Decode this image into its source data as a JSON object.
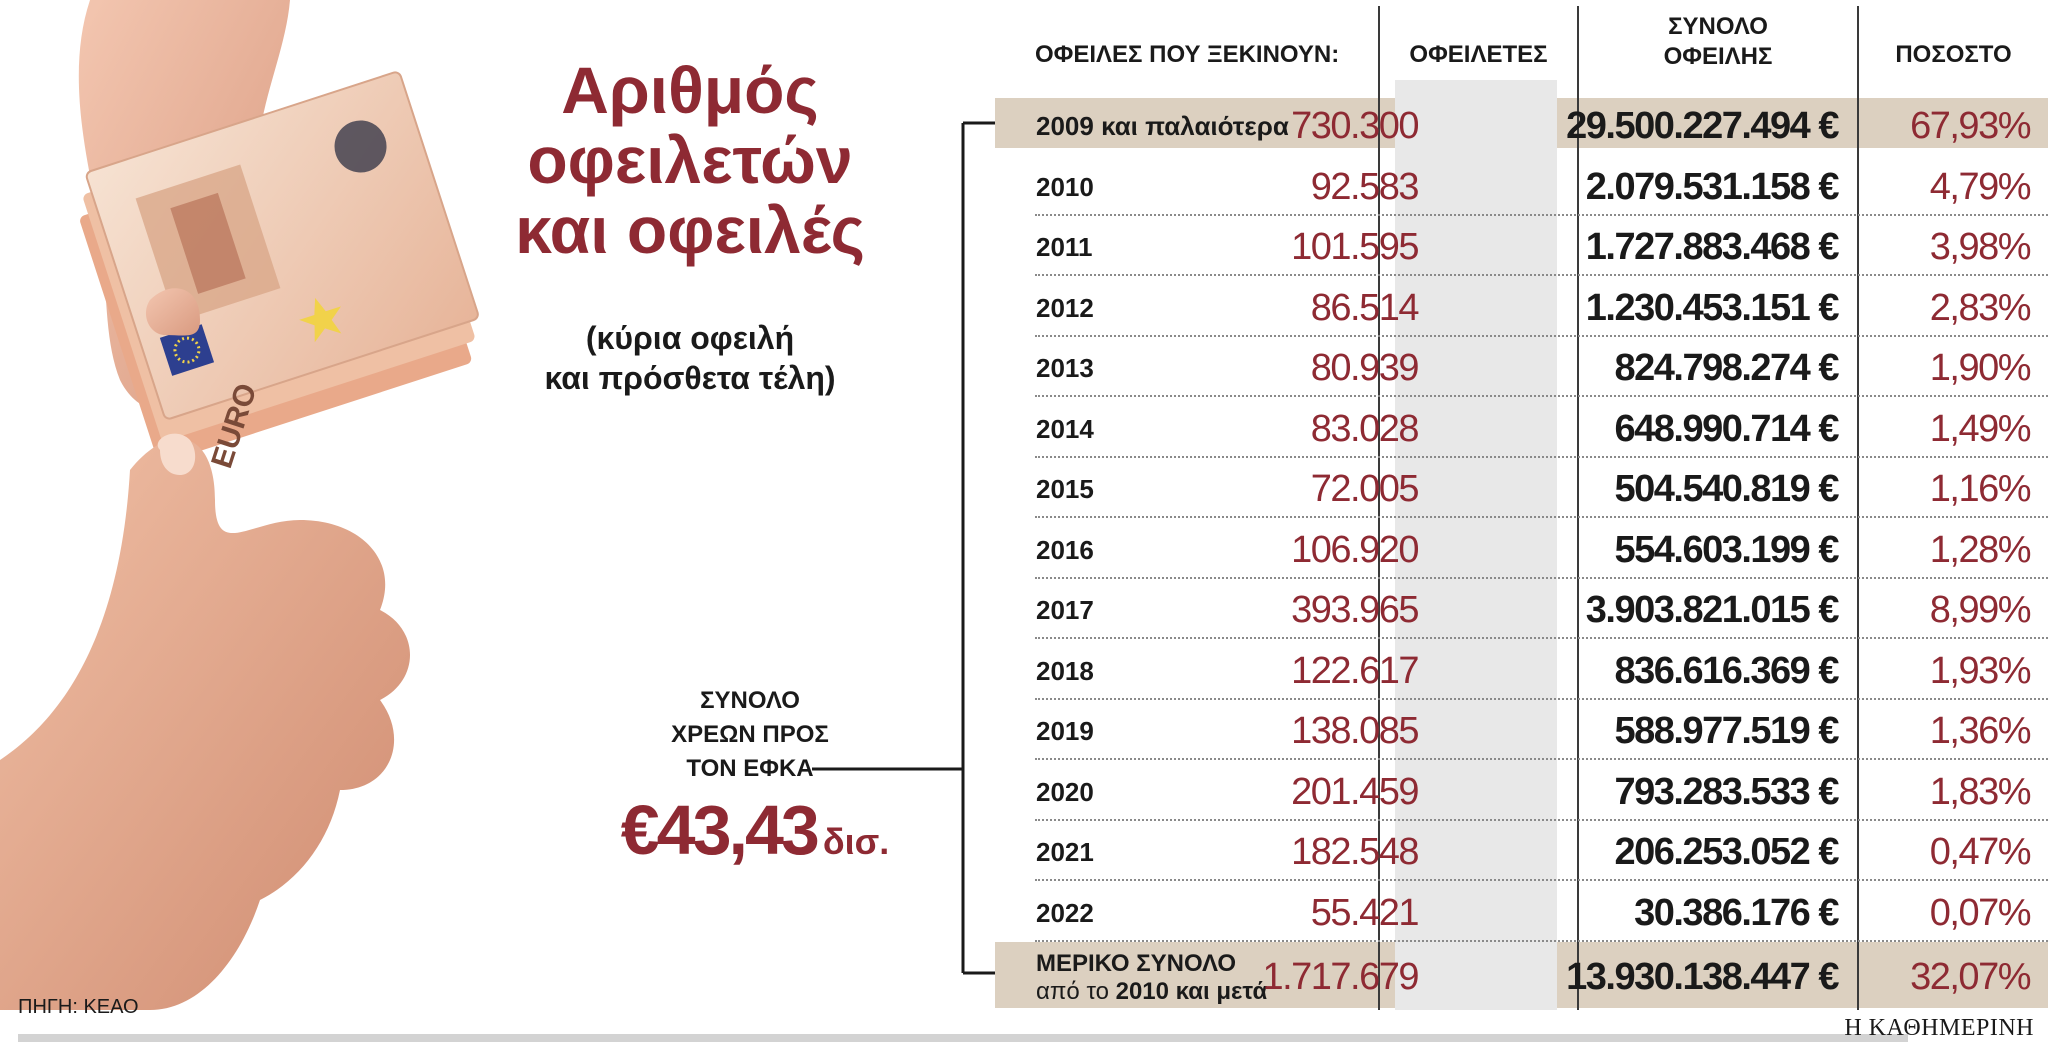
{
  "title_lines": [
    "Αριθμός",
    "οφειλετών",
    "και οφειλές"
  ],
  "subtitle_lines": [
    "(κύρια οφειλή",
    "και πρόσθετα τέλη)"
  ],
  "total": {
    "label_lines": [
      "ΣΥΝΟΛΟ",
      "ΧΡΕΩΝ ΠΡΟΣ",
      "ΤΟΝ ΕΦΚΑ"
    ],
    "value": "€43,43",
    "unit": "δισ."
  },
  "source": "ΠΗΓΗ: ΚΕΑΟ",
  "brand": "Η ΚΑΘΗΜΕΡΙΝΗ",
  "banknote_text": "EURO",
  "colors": {
    "accent": "#8e2a33",
    "band": "#dcd0c0",
    "column_shade": "#e8e8e8"
  },
  "chart_data": {
    "type": "table",
    "columns": [
      "ΟΦΕΙΛΕΣ ΠΟΥ ΞΕΚΙΝΟΥΝ:",
      "ΟΦΕΙΛΕΤΕΣ",
      "ΣΥΝΟΛΟ ΟΦΕΙΛΗΣ",
      "ΠΟΣΟΣΤΟ"
    ],
    "rows": [
      {
        "period": "2009 και παλαιότερα",
        "debtors": "730.300",
        "total": "29.500.227.494 €",
        "pct": "67,93%"
      },
      {
        "period": "2010",
        "debtors": "92.583",
        "total": "2.079.531.158 €",
        "pct": "4,79%"
      },
      {
        "period": "2011",
        "debtors": "101.595",
        "total": "1.727.883.468 €",
        "pct": "3,98%"
      },
      {
        "period": "2012",
        "debtors": "86.514",
        "total": "1.230.453.151 €",
        "pct": "2,83%"
      },
      {
        "period": "2013",
        "debtors": "80.939",
        "total": "824.798.274 €",
        "pct": "1,90%"
      },
      {
        "period": "2014",
        "debtors": "83.028",
        "total": "648.990.714 €",
        "pct": "1,49%"
      },
      {
        "period": "2015",
        "debtors": "72.005",
        "total": "504.540.819 €",
        "pct": "1,16%"
      },
      {
        "period": "2016",
        "debtors": "106.920",
        "total": "554.603.199 €",
        "pct": "1,28%"
      },
      {
        "period": "2017",
        "debtors": "393.965",
        "total": "3.903.821.015 €",
        "pct": "8,99%"
      },
      {
        "period": "2018",
        "debtors": "122.617",
        "total": "836.616.369 €",
        "pct": "1,93%"
      },
      {
        "period": "2019",
        "debtors": "138.085",
        "total": "588.977.519 €",
        "pct": "1,36%"
      },
      {
        "period": "2020",
        "debtors": "201.459",
        "total": "793.283.533 €",
        "pct": "1,83%"
      },
      {
        "period": "2021",
        "debtors": "182.548",
        "total": "206.253.052 €",
        "pct": "0,47%"
      },
      {
        "period": "2022",
        "debtors": "55.421",
        "total": "30.386.176 €",
        "pct": "0,07%"
      }
    ],
    "subtotal": {
      "label_line1": "ΜΕΡΙΚΟ ΣΥΝΟΛΟ",
      "label_line2_prefix": "από το",
      "label_line2_bold": "2010 και μετά",
      "debtors": "1.717.679",
      "total": "13.930.138.447 €",
      "pct": "32,07%"
    }
  }
}
